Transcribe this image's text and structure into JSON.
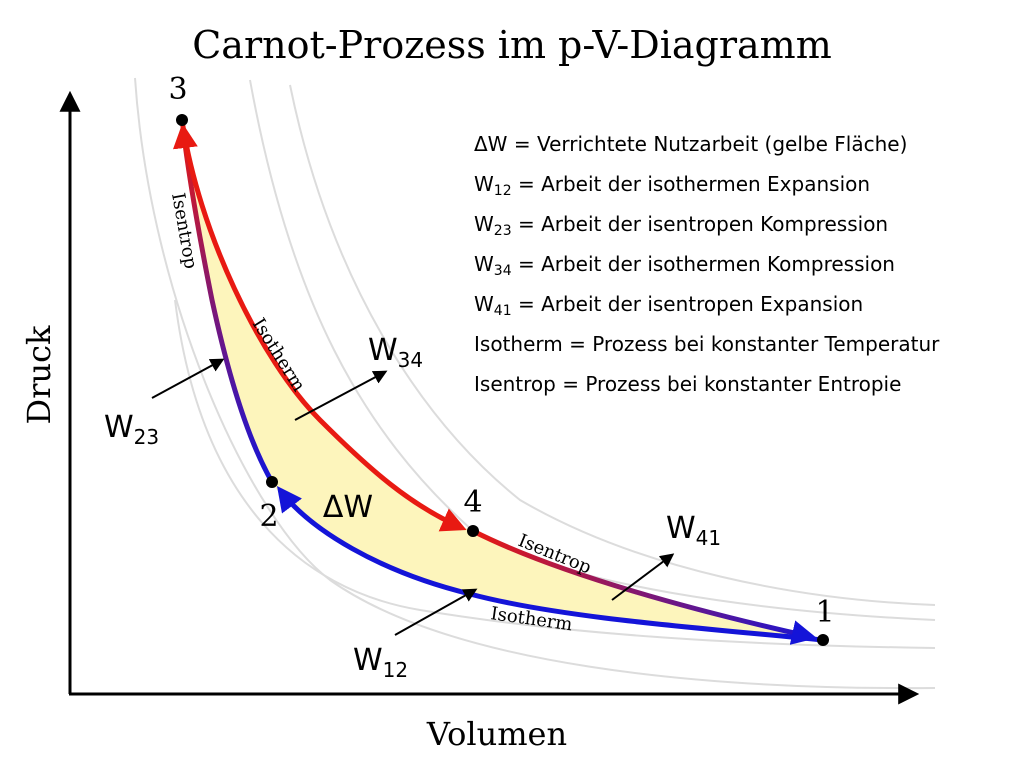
{
  "title": "Carnot-Prozess im p-V-Diagramm",
  "axes": {
    "xlabel": "Volumen",
    "ylabel": "Druck"
  },
  "colors": {
    "isotherm_hot": "#e81a12",
    "isotherm_cold": "#1414d8",
    "isentrop_gradient": [
      "#1414d8",
      "#e81a12"
    ],
    "work_area": "#fdf5bc",
    "guide_curves": "#d9d9d9"
  },
  "points": [
    {
      "label": "1"
    },
    {
      "label": "2"
    },
    {
      "label": "3"
    },
    {
      "label": "4"
    }
  ],
  "curve_labels": {
    "isentrop_left": "Isentrop",
    "isotherm_top": "Isotherm",
    "isentrop_right": "Isentrop",
    "isotherm_bottom": "Isotherm"
  },
  "work_labels": {
    "dw": "ΔW",
    "w12": {
      "base": "W",
      "sub": "12"
    },
    "w23": {
      "base": "W",
      "sub": "23"
    },
    "w34": {
      "base": "W",
      "sub": "34"
    },
    "w41": {
      "base": "W",
      "sub": "41"
    }
  },
  "legend": [
    {
      "sym": "ΔW",
      "sub": "",
      "text": " = Verrichtete Nutzarbeit (gelbe Fläche)"
    },
    {
      "sym": "W",
      "sub": "12",
      "text": " = Arbeit der isothermen Expansion"
    },
    {
      "sym": "W",
      "sub": "23",
      "text": " = Arbeit der isentropen Kompression"
    },
    {
      "sym": "W",
      "sub": "34",
      "text": " = Arbeit der isothermen Kompression"
    },
    {
      "sym": "W",
      "sub": "41",
      "text": " = Arbeit der isentropen Expansion"
    },
    {
      "sym": "Isotherm",
      "sub": "",
      "text": " = Prozess bei konstanter Temperatur"
    },
    {
      "sym": "Isentrop",
      "sub": "",
      "text": " = Prozess bei konstanter Entropie"
    }
  ]
}
